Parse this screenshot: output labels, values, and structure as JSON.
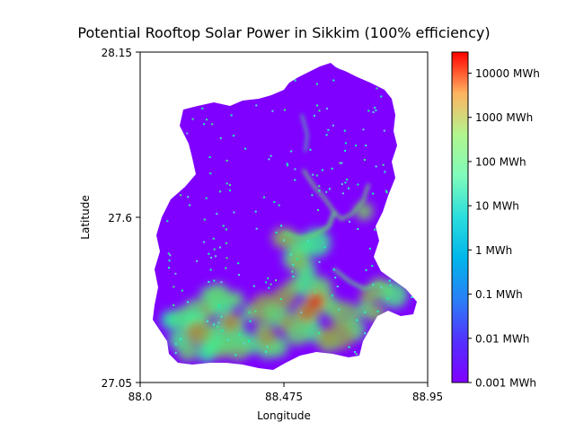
{
  "title": "Potential Rooftop Solar Power in Sikkim (100% efficiency)",
  "x_axis": {
    "label": "Longitude",
    "range": [
      88.0,
      88.95
    ],
    "ticks": [
      {
        "value": 88.0,
        "label": "88.0"
      },
      {
        "value": 88.475,
        "label": "88.475"
      },
      {
        "value": 88.95,
        "label": "88.95"
      }
    ]
  },
  "y_axis": {
    "label": "Latitude",
    "range": [
      27.05,
      28.15
    ],
    "ticks": [
      {
        "value": 28.15,
        "label": "28.15"
      },
      {
        "value": 27.6,
        "label": "27.6"
      },
      {
        "value": 27.05,
        "label": "27.05"
      }
    ]
  },
  "colorbar": {
    "colormap": "rainbow",
    "scale": "log",
    "range": [
      0.001,
      30000
    ],
    "ticks": [
      {
        "value": 0.001,
        "label": "0.001 MWh"
      },
      {
        "value": 0.01,
        "label": "0.01 MWh"
      },
      {
        "value": 0.1,
        "label": "0.1 MWh"
      },
      {
        "value": 1,
        "label": "1 MWh"
      },
      {
        "value": 10,
        "label": "10 MWh"
      },
      {
        "value": 100,
        "label": "100 MWh"
      },
      {
        "value": 1000,
        "label": "1000 MWh"
      },
      {
        "value": 10000,
        "label": "10000 MWh"
      }
    ]
  },
  "colors": {
    "background_region": "#7f00ff",
    "low": "#8000ff",
    "high": "#ff0000"
  },
  "hotspots": [
    {
      "lon": 88.58,
      "lat": 27.32,
      "value": 8000
    },
    {
      "lon": 88.55,
      "lat": 27.28,
      "value": 3000
    },
    {
      "lon": 88.3,
      "lat": 27.25,
      "value": 1500
    },
    {
      "lon": 88.18,
      "lat": 27.22,
      "value": 1200
    },
    {
      "lon": 88.42,
      "lat": 27.2,
      "value": 900
    },
    {
      "lon": 88.62,
      "lat": 27.2,
      "value": 900
    },
    {
      "lon": 88.52,
      "lat": 27.45,
      "value": 400
    },
    {
      "lon": 88.74,
      "lat": 27.62,
      "value": 300
    },
    {
      "lon": 88.78,
      "lat": 27.28,
      "value": 400
    }
  ]
}
